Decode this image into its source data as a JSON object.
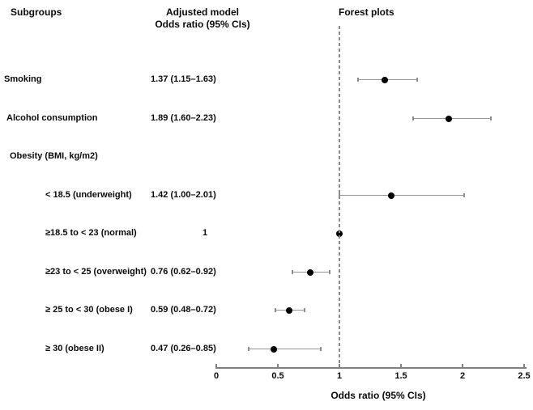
{
  "header": {
    "subgroups": "Subgroups",
    "adjusted_model_line1": "Adjusted model",
    "adjusted_model_line2": "Odds ratio (95% CIs)",
    "forest_plots": "Forest plots"
  },
  "colors": {
    "text": "#0a0a0a",
    "error_bar_gray": "#949494",
    "axis_gray": "#808080",
    "reference_line_gray": "#8a8a8a",
    "dot_black": "#000000",
    "background": "#ffffff"
  },
  "chart_data": {
    "type": "scatter",
    "subtype": "forest-plot",
    "title": "Forest plots",
    "xlabel": "Odds ratio (95% CIs)",
    "xlim": [
      0,
      2.5
    ],
    "xticks": [
      0,
      0.5,
      1,
      1.5,
      2,
      2.5
    ],
    "reference_line_x": 1,
    "grid": false,
    "rows": [
      {
        "label": "Smoking",
        "value_text": "1.37 (1.15–1.63)",
        "estimate": 1.37,
        "ci_low": 1.15,
        "ci_high": 1.63,
        "indent": 0
      },
      {
        "label": "Alcohol consumption",
        "value_text": "1.89 (1.60–2.23)",
        "estimate": 1.89,
        "ci_low": 1.6,
        "ci_high": 2.23,
        "indent": 1
      },
      {
        "label": "Obesity (BMI, kg/m2)",
        "value_text": "",
        "estimate": null,
        "ci_low": null,
        "ci_high": null,
        "indent": 2
      },
      {
        "label": "< 18.5 (underweight)",
        "value_text": "1.42 (1.00–2.01)",
        "estimate": 1.42,
        "ci_low": 1.0,
        "ci_high": 2.01,
        "indent": 3
      },
      {
        "label": "≥18.5 to < 23 (normal)",
        "value_text": "1",
        "estimate": 1.0,
        "ci_low": null,
        "ci_high": null,
        "indent": 3
      },
      {
        "label": "≥23 to < 25 (overweight)",
        "value_text": "0.76 (0.62–0.92)",
        "estimate": 0.76,
        "ci_low": 0.62,
        "ci_high": 0.92,
        "indent": 3
      },
      {
        "label": "≥ 25 to < 30 (obese I)",
        "value_text": "0.59 (0.48–0.72)",
        "estimate": 0.59,
        "ci_low": 0.48,
        "ci_high": 0.72,
        "indent": 3
      },
      {
        "label": "≥ 30 (obese II)",
        "value_text": "0.47 (0.26–0.85)",
        "estimate": 0.47,
        "ci_low": 0.26,
        "ci_high": 0.85,
        "indent": 3
      }
    ]
  }
}
